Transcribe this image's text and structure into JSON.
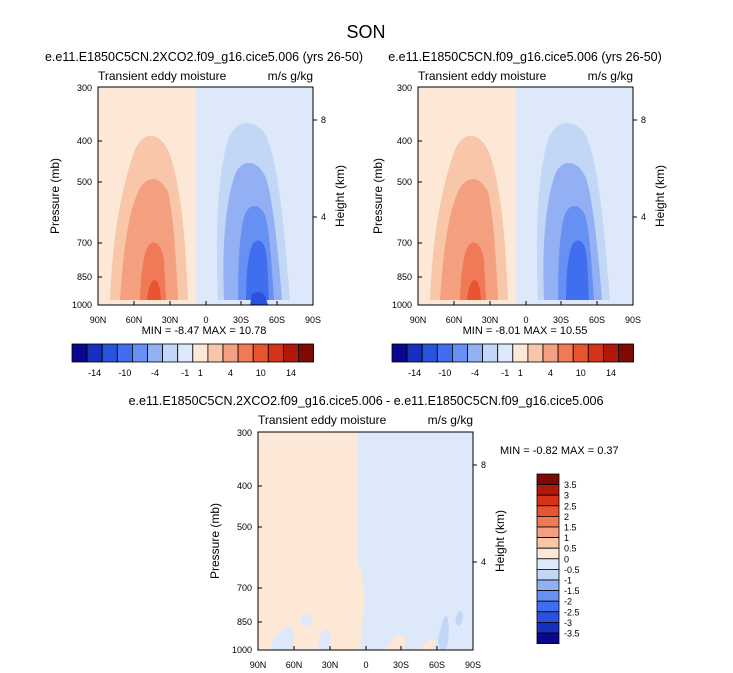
{
  "figure": {
    "title": "SON"
  },
  "shared": {
    "subtitle": "Transient eddy moisture",
    "units": "m/s g/kg",
    "ylabel_left": "Pressure (mb)",
    "ylabel_right": "Height (km)",
    "x_ticks": [
      "90N",
      "60N",
      "30N",
      "0",
      "30S",
      "60S",
      "90S"
    ],
    "y_ticks": [
      "300",
      "400",
      "500",
      "700",
      "850",
      "1000"
    ],
    "y2_ticks": [
      "8",
      "4"
    ]
  },
  "panels": [
    {
      "title": "e.e11.E1850C5CN.2XCO2.f09_g16.cice5.006 (yrs 26-50)",
      "stats": "MIN =  -8.47  MAX =  10.78"
    },
    {
      "title": "e.e11.E1850C5CN.f09_g16.cice5.006 (yrs 26-50)",
      "stats": "MIN =  -8.01  MAX =  10.55"
    },
    {
      "title": "e.e11.E1850C5CN.2XCO2.f09_g16.cice5.006 - e.e11.E1850C5CN.f09_g16.cice5.006",
      "stats": "MIN =  -0.82  MAX =   0.37"
    }
  ],
  "colorbar_top": {
    "labels": [
      "-14",
      "-10",
      "-4",
      "-1",
      "1",
      "4",
      "10",
      "14"
    ],
    "colors": [
      "#08088f",
      "#1530bd",
      "#2a52de",
      "#3f6ff0",
      "#6690f2",
      "#93b0f4",
      "#c2d6f6",
      "#dde9fa",
      "#fde7d6",
      "#f8c6a8",
      "#f4a080",
      "#f07a56",
      "#e8542e",
      "#d63218",
      "#b0180c",
      "#7d0a05"
    ]
  },
  "colorbar_diff": {
    "labels": [
      "3.5",
      "3",
      "2.5",
      "2",
      "1.5",
      "1",
      "0.5",
      "0",
      "-0.5",
      "-1",
      "-1.5",
      "-2",
      "-2.5",
      "-3",
      "-3.5"
    ],
    "colors": [
      "#7d0a05",
      "#b0180c",
      "#d63218",
      "#e8542e",
      "#f07a56",
      "#f4a080",
      "#f8c6a8",
      "#fde7d6",
      "#dde9fa",
      "#c2d6f6",
      "#93b0f4",
      "#6690f2",
      "#3f6ff0",
      "#2a52de",
      "#1530bd",
      "#08088f"
    ]
  },
  "chart_data": [
    {
      "type": "heatmap",
      "title": "e.e11.E1850C5CN.2XCO2.f09_g16.cice5.006 (yrs 26-50)",
      "subtitle": "Transient eddy moisture",
      "units": "m/s g/kg",
      "xlabel": "",
      "ylabel": "Pressure (mb)",
      "y2label": "Height (km)",
      "x_range": [
        "90N",
        "90S"
      ],
      "ylim": [
        1000,
        300
      ],
      "y_scale": "log",
      "min": -8.47,
      "max": 10.78,
      "features": {
        "positive_max": {
          "lat": 30,
          "pressure": 1000,
          "value": 10.78
        },
        "negative_min": {
          "lat": -40,
          "pressure": 1000,
          "value": -8.47
        }
      }
    },
    {
      "type": "heatmap",
      "title": "e.e11.E1850C5CN.f09_g16.cice5.006 (yrs 26-50)",
      "subtitle": "Transient eddy moisture",
      "units": "m/s g/kg",
      "xlabel": "",
      "ylabel": "Pressure (mb)",
      "y2label": "Height (km)",
      "x_range": [
        "90N",
        "90S"
      ],
      "ylim": [
        1000,
        300
      ],
      "y_scale": "log",
      "min": -8.01,
      "max": 10.55,
      "features": {
        "positive_max": {
          "lat": 30,
          "pressure": 1000,
          "value": 10.55
        },
        "negative_min": {
          "lat": -40,
          "pressure": 1000,
          "value": -8.01
        }
      }
    },
    {
      "type": "heatmap",
      "title": "e.e11.E1850C5CN.2XCO2.f09_g16.cice5.006 - e.e11.E1850C5CN.f09_g16.cice5.006",
      "subtitle": "Transient eddy moisture",
      "units": "m/s g/kg",
      "xlabel": "",
      "ylabel": "Pressure (mb)",
      "y2label": "Height (km)",
      "x_range": [
        "90N",
        "90S"
      ],
      "ylim": [
        1000,
        300
      ],
      "y_scale": "log",
      "min": -0.82,
      "max": 0.37,
      "features": {
        "north_of_10S": "0 to 0.5",
        "south_of_10S": "-0.5 to 0",
        "small_negative_patches": [
          {
            "lat": 60
          },
          {
            "lat": 45
          },
          {
            "lat": -20
          },
          {
            "lat": -60
          },
          {
            "lat": -75
          }
        ]
      }
    }
  ]
}
